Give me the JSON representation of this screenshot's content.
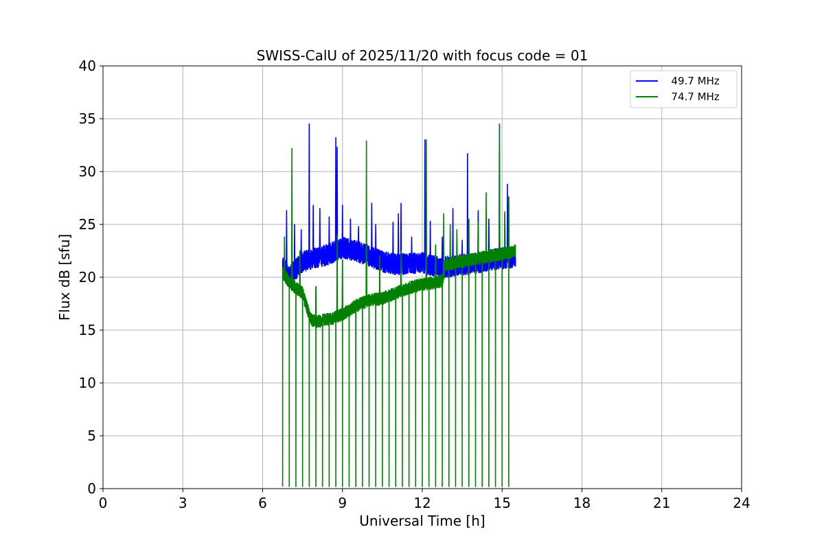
{
  "chart_data": {
    "type": "line",
    "title": "SWISS-CalU of 2025/11/20 with focus code = 01",
    "xlabel": "Universal Time [h]",
    "ylabel": "Flux dB [sfu]",
    "xlim": [
      0,
      24
    ],
    "ylim": [
      0,
      40
    ],
    "xticks": [
      0,
      3,
      6,
      9,
      12,
      15,
      18,
      21,
      24
    ],
    "yticks": [
      0,
      5,
      10,
      15,
      20,
      25,
      30,
      35,
      40
    ],
    "xtick_labels": [
      "0",
      "3",
      "6",
      "9",
      "12",
      "15",
      "18",
      "21",
      "24"
    ],
    "ytick_labels": [
      "0",
      "5",
      "10",
      "15",
      "20",
      "25",
      "30",
      "35",
      "40"
    ],
    "grid": true,
    "legend_position": "top-right",
    "series": [
      {
        "name": "49.7 MHz",
        "legend_label": "  49.7 MHz",
        "color": "#0000ff",
        "t_start": 6.75,
        "t_end": 15.5,
        "baseline": [
          [
            6.75,
            21.0
          ],
          [
            7.0,
            20.0
          ],
          [
            7.5,
            21.5
          ],
          [
            8.0,
            21.8
          ],
          [
            8.5,
            22.2
          ],
          [
            9.0,
            22.8
          ],
          [
            9.5,
            22.5
          ],
          [
            10.0,
            22.0
          ],
          [
            10.5,
            21.5
          ],
          [
            11.0,
            21.2
          ],
          [
            11.5,
            21.3
          ],
          [
            12.0,
            21.4
          ],
          [
            12.5,
            21.0
          ],
          [
            13.0,
            21.0
          ],
          [
            13.5,
            21.2
          ],
          [
            14.0,
            21.3
          ],
          [
            14.5,
            21.6
          ],
          [
            15.0,
            21.8
          ],
          [
            15.5,
            21.9
          ]
        ],
        "noise_amplitude": 1.0,
        "spikes": [
          [
            6.9,
            26.3
          ],
          [
            7.2,
            25.0
          ],
          [
            7.45,
            24.5
          ],
          [
            7.75,
            34.5
          ],
          [
            7.9,
            26.8
          ],
          [
            8.15,
            26.5
          ],
          [
            8.5,
            25.7
          ],
          [
            8.75,
            33.2
          ],
          [
            8.8,
            32.3
          ],
          [
            9.0,
            26.8
          ],
          [
            9.3,
            25.5
          ],
          [
            9.6,
            24.8
          ],
          [
            10.1,
            27.0
          ],
          [
            10.25,
            25.0
          ],
          [
            10.9,
            25.2
          ],
          [
            11.1,
            26.0
          ],
          [
            11.2,
            27.0
          ],
          [
            11.6,
            23.8
          ],
          [
            12.1,
            33.0
          ],
          [
            12.3,
            25.3
          ],
          [
            12.75,
            23.8
          ],
          [
            13.15,
            26.5
          ],
          [
            13.5,
            23.5
          ],
          [
            13.7,
            31.7
          ],
          [
            14.1,
            26.3
          ],
          [
            14.5,
            25.5
          ],
          [
            14.9,
            34.5
          ],
          [
            15.1,
            26.0
          ],
          [
            15.2,
            28.8
          ]
        ],
        "dropouts": []
      },
      {
        "name": "74.7 MHz",
        "legend_label": "  74.7 MHz",
        "color": "#008000",
        "t_start": 6.75,
        "t_end": 15.5,
        "baseline": [
          [
            6.75,
            20.5
          ],
          [
            7.0,
            19.5
          ],
          [
            7.5,
            18.5
          ],
          [
            7.8,
            16.0
          ],
          [
            8.0,
            15.8
          ],
          [
            8.5,
            16.0
          ],
          [
            9.0,
            16.5
          ],
          [
            9.5,
            17.3
          ],
          [
            10.0,
            17.8
          ],
          [
            10.5,
            18.0
          ],
          [
            11.0,
            18.5
          ],
          [
            11.5,
            19.0
          ],
          [
            12.0,
            19.3
          ],
          [
            12.5,
            19.5
          ],
          [
            12.8,
            19.7
          ],
          [
            12.85,
            21.2
          ],
          [
            13.5,
            21.5
          ],
          [
            14.0,
            21.7
          ],
          [
            14.5,
            22.0
          ],
          [
            15.0,
            22.2
          ],
          [
            15.5,
            22.5
          ]
        ],
        "noise_amplitude": 0.6,
        "spikes": [
          [
            6.82,
            23.8
          ],
          [
            7.1,
            32.2
          ],
          [
            7.4,
            22.5
          ],
          [
            8.0,
            20.0
          ],
          [
            8.8,
            24.0
          ],
          [
            9.0,
            23.0
          ],
          [
            9.9,
            32.9
          ],
          [
            10.4,
            22.0
          ],
          [
            11.2,
            22.5
          ],
          [
            12.15,
            33.0
          ],
          [
            12.5,
            24.0
          ],
          [
            12.8,
            26.0
          ],
          [
            13.05,
            25.0
          ],
          [
            13.3,
            24.5
          ],
          [
            13.75,
            26.5
          ],
          [
            14.1,
            25.2
          ],
          [
            14.4,
            28.0
          ],
          [
            14.9,
            34.5
          ],
          [
            15.1,
            26.2
          ],
          [
            15.25,
            29.0
          ]
        ],
        "dropouts": [
          6.75,
          7.0,
          7.25,
          7.5,
          7.75,
          8.0,
          8.25,
          8.5,
          8.75,
          9.0,
          9.25,
          9.5,
          9.75,
          10.0,
          10.25,
          10.5,
          10.75,
          11.0,
          11.25,
          11.5,
          11.75,
          12.0,
          12.25,
          12.5,
          12.75,
          13.0,
          13.25,
          13.5,
          13.75,
          14.0,
          14.25,
          14.5,
          14.75,
          15.0,
          15.25
        ],
        "dropout_min": 0.2
      }
    ]
  }
}
